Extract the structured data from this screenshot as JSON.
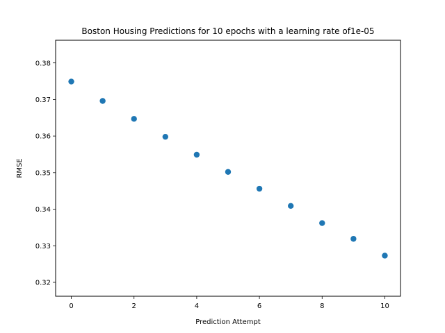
{
  "chart_data": {
    "type": "scatter",
    "title": "Boston Housing Predictions for 10 epochs with a learning rate of1e-05",
    "xlabel": "Prediction Attempt",
    "ylabel": "RMSE",
    "xlim": [
      -0.5,
      10.5
    ],
    "ylim": [
      0.3162,
      0.3862
    ],
    "xticks": [
      0,
      2,
      4,
      6,
      8,
      10
    ],
    "xtick_labels": [
      "0",
      "2",
      "4",
      "6",
      "8",
      "10"
    ],
    "yticks": [
      0.32,
      0.33,
      0.34,
      0.35,
      0.36,
      0.37,
      0.38
    ],
    "ytick_labels": [
      "0.32",
      "0.33",
      "0.34",
      "0.35",
      "0.36",
      "0.37",
      "0.38"
    ],
    "grid": false,
    "marker_color": "#1f77b4",
    "series": [
      {
        "x": [
          0,
          1,
          2,
          3,
          4,
          5,
          6,
          7,
          8,
          9,
          10
        ],
        "y": [
          0.3749,
          0.3696,
          0.3647,
          0.3598,
          0.3549,
          0.3502,
          0.3456,
          0.3409,
          0.3362,
          0.3319,
          0.3273
        ]
      }
    ]
  }
}
